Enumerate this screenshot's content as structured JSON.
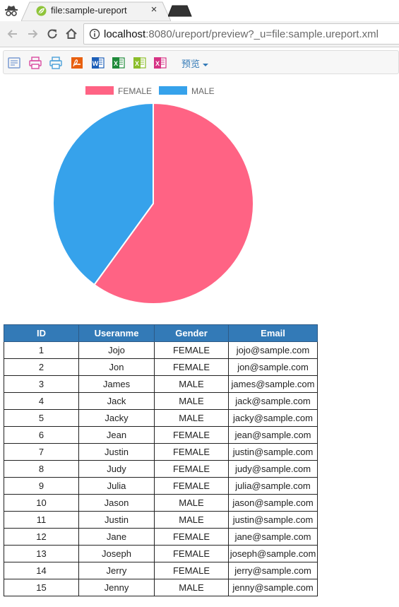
{
  "browser": {
    "tab_title": "file:sample-ureport",
    "tab_close": "×",
    "url_host": "localhost",
    "url_rest": ":8080/ureport/preview?_u=file:sample.ureport.xml"
  },
  "report_toolbar": {
    "buttons": [
      {
        "icon": "print-preview-icon",
        "color": "#7a9cd2"
      },
      {
        "icon": "print-icon",
        "color": "#d94aa0"
      },
      {
        "icon": "print-html-icon",
        "color": "#4aa0d9"
      },
      {
        "icon": "export-pdf-icon",
        "color": "#e8600f"
      },
      {
        "icon": "export-word-icon",
        "color": "#1d5fb8"
      },
      {
        "icon": "export-excel-icon",
        "color": "#1f8a3a"
      },
      {
        "icon": "export-excel-paged-icon",
        "color": "#8bbd2a"
      },
      {
        "icon": "export-excel-sheet-icon",
        "color": "#d63384"
      }
    ],
    "preview_label": "预览"
  },
  "chart_data": {
    "type": "pie",
    "legend_position": "top",
    "categories": [
      "FEMALE",
      "MALE"
    ],
    "values": [
      9,
      6
    ],
    "colors": [
      "#ff6384",
      "#36a2eb"
    ]
  },
  "table": {
    "headers": [
      "ID",
      "Useranme",
      "Gender",
      "Email"
    ],
    "rows": [
      [
        "1",
        "Jojo",
        "FEMALE",
        "jojo@sample.com"
      ],
      [
        "2",
        "Jon",
        "FEMALE",
        "jon@sample.com"
      ],
      [
        "3",
        "James",
        "MALE",
        "james@sample.com"
      ],
      [
        "4",
        "Jack",
        "MALE",
        "jack@sample.com"
      ],
      [
        "5",
        "Jacky",
        "MALE",
        "jacky@sample.com"
      ],
      [
        "6",
        "Jean",
        "FEMALE",
        "jean@sample.com"
      ],
      [
        "7",
        "Justin",
        "FEMALE",
        "justin@sample.com"
      ],
      [
        "8",
        "Judy",
        "FEMALE",
        "judy@sample.com"
      ],
      [
        "9",
        "Julia",
        "FEMALE",
        "julia@sample.com"
      ],
      [
        "10",
        "Jason",
        "MALE",
        "jason@sample.com"
      ],
      [
        "11",
        "Justin",
        "MALE",
        "justin@sample.com"
      ],
      [
        "12",
        "Jane",
        "FEMALE",
        "jane@sample.com"
      ],
      [
        "13",
        "Joseph",
        "FEMALE",
        "joseph@sample.com"
      ],
      [
        "14",
        "Jerry",
        "FEMALE",
        "jerry@sample.com"
      ],
      [
        "15",
        "Jenny",
        "MALE",
        "jenny@sample.com"
      ]
    ]
  }
}
